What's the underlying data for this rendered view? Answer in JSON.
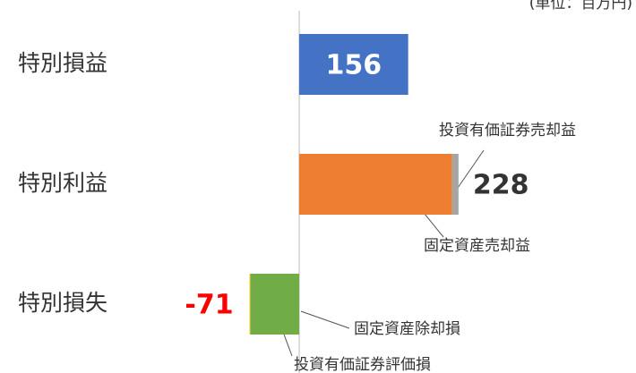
{
  "chart_data": {
    "type": "bar",
    "orientation": "horizontal",
    "stacked": true,
    "unit_note": "(単位：百万円)",
    "categories": [
      "特別損益",
      "特別利益",
      "特別損失"
    ],
    "series": [
      {
        "color": "#4472c4",
        "values": [
          156,
          null,
          null
        ]
      },
      {
        "name": "固定資産売却益",
        "color": "#ed7d31",
        "values": [
          null,
          219,
          null
        ]
      },
      {
        "name": "投資有価証券売却益",
        "color": "#a5a5a5",
        "values": [
          null,
          9,
          null
        ]
      },
      {
        "name": "投資有価証券評価損",
        "color": "#70ad47",
        "values": [
          null,
          null,
          -70
        ]
      },
      {
        "name": "固定資産除却損",
        "color": "#ffc000",
        "values": [
          null,
          null,
          -1
        ]
      }
    ],
    "totals": [
      156,
      228,
      -71
    ],
    "xlim": [
      -100,
      300
    ]
  }
}
